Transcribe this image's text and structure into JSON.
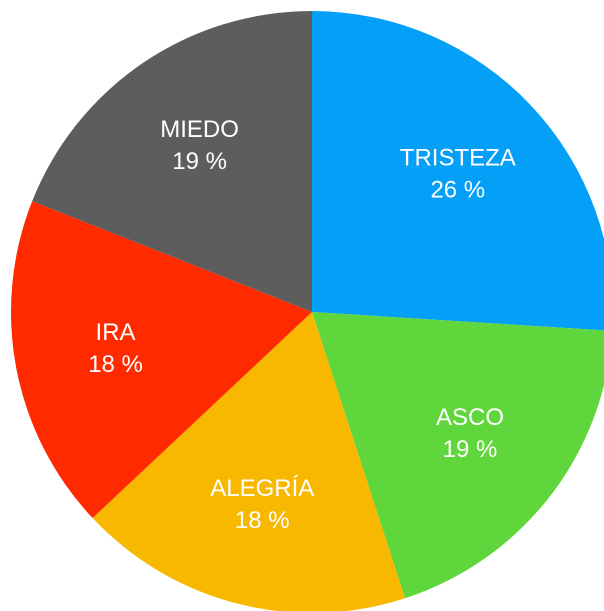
{
  "chart_data": {
    "type": "pie",
    "categories": [
      "TRISTEZA",
      "ASCO",
      "ALEGRÍA",
      "IRA",
      "MIEDO"
    ],
    "values": [
      26,
      19,
      18,
      18,
      19
    ],
    "value_labels": [
      "26 %",
      "19 %",
      "18 %",
      "18 %",
      "19 %"
    ],
    "colors": [
      "#049ff6",
      "#5fd63b",
      "#f9b800",
      "#ff2a00",
      "#5d5d5d"
    ]
  }
}
